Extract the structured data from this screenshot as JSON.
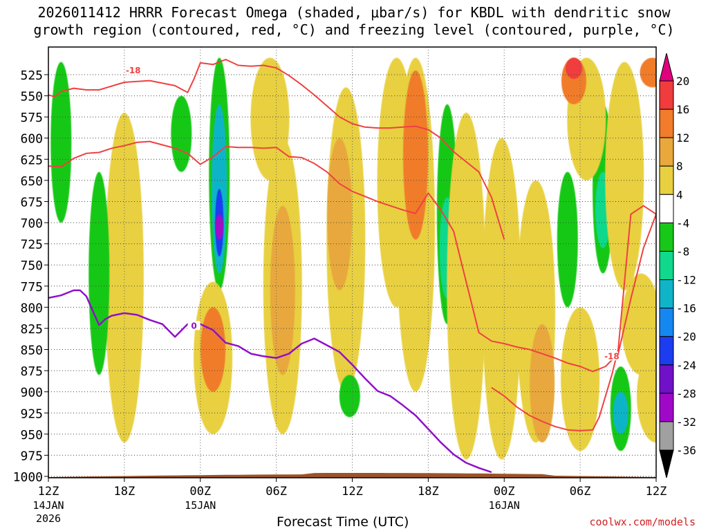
{
  "title": {
    "line1": "2026011412 HRRR Forecast Omega (shaded, μbar/s) for KBDL with dendritic snow",
    "line2": "growth region (contoured, red, °C) and freezing level (contoured, purple, °C)"
  },
  "credit": "coolwx.com/models",
  "chart_data": {
    "type": "heatmap",
    "title": "2026011412 HRRR Forecast Omega (shaded, μbar/s) for KBDL with dendritic snow growth region (contoured, red, °C) and freezing level (contoured, purple, °C)",
    "xlabel": "Forecast Time (UTC)",
    "ylabel": "Pressure (hPa)",
    "x_range_hours": [
      0,
      48
    ],
    "y_range_hpa": [
      505,
      1000
    ],
    "y_ticks": [
      525,
      550,
      575,
      600,
      625,
      650,
      675,
      700,
      725,
      750,
      775,
      800,
      825,
      850,
      875,
      900,
      925,
      950,
      975,
      1000
    ],
    "x_ticks": [
      {
        "hour": 0,
        "label": "12Z",
        "sub1": "14JAN",
        "sub2": "2026"
      },
      {
        "hour": 6,
        "label": "18Z",
        "sub1": "",
        "sub2": ""
      },
      {
        "hour": 12,
        "label": "00Z",
        "sub1": "15JAN",
        "sub2": ""
      },
      {
        "hour": 18,
        "label": "06Z",
        "sub1": "",
        "sub2": ""
      },
      {
        "hour": 24,
        "label": "12Z",
        "sub1": "",
        "sub2": ""
      },
      {
        "hour": 30,
        "label": "18Z",
        "sub1": "",
        "sub2": ""
      },
      {
        "hour": 36,
        "label": "00Z",
        "sub1": "16JAN",
        "sub2": ""
      },
      {
        "hour": 42,
        "label": "06Z",
        "sub1": "",
        "sub2": ""
      },
      {
        "hour": 48,
        "label": "12Z",
        "sub1": "",
        "sub2": ""
      }
    ],
    "colorbar": {
      "levels": [
        -36,
        -32,
        -28,
        -24,
        -20,
        -16,
        -12,
        -8,
        -4,
        4,
        8,
        12,
        16,
        20
      ],
      "labels": [
        "20",
        "16",
        "12",
        "8",
        "4",
        "-4",
        "-8",
        "-12",
        "-16",
        "-20",
        "-24",
        "-28",
        "-32",
        "-36"
      ],
      "colors_top_to_bottom": [
        "#e0007e",
        "#f03c3c",
        "#f07c2c",
        "#e8a83c",
        "#e8d040",
        "#ffffff",
        "#18c818",
        "#10d88c",
        "#10b4c8",
        "#1488f0",
        "#1c3cf0",
        "#7010c8",
        "#a008c8",
        "#a0a0a0",
        "#000000"
      ]
    },
    "omega_cells": [
      {
        "hour": 6,
        "p_top": 690,
        "p_bot": 870,
        "value": 18
      },
      {
        "hour": 6,
        "p_top": 620,
        "p_bot": 900,
        "value": 12
      },
      {
        "hour": 6,
        "p_top": 570,
        "p_bot": 960,
        "value": 6
      },
      {
        "hour": 1,
        "p_top": 510,
        "p_bot": 700,
        "value": -6
      },
      {
        "hour": 4,
        "p_top": 640,
        "p_bot": 880,
        "value": -6
      },
      {
        "hour": 10.5,
        "p_top": 550,
        "p_bot": 640,
        "value": -6
      },
      {
        "hour": 13.5,
        "p_top": 505,
        "p_bot": 780,
        "value": -6
      },
      {
        "hour": 13.5,
        "p_top": 560,
        "p_bot": 760,
        "value": -14
      },
      {
        "hour": 13.5,
        "p_top": 660,
        "p_bot": 740,
        "value": -24
      },
      {
        "hour": 13.5,
        "p_top": 690,
        "p_bot": 720,
        "value": -29
      },
      {
        "hour": 13,
        "p_top": 770,
        "p_bot": 950,
        "value": 6
      },
      {
        "hour": 13,
        "p_top": 800,
        "p_bot": 900,
        "value": 12
      },
      {
        "hour": 18.5,
        "p_top": 600,
        "p_bot": 950,
        "value": 6
      },
      {
        "hour": 18.5,
        "p_top": 680,
        "p_bot": 880,
        "value": 10
      },
      {
        "hour": 17.5,
        "p_top": 505,
        "p_bot": 650,
        "value": 6
      },
      {
        "hour": 23.5,
        "p_top": 540,
        "p_bot": 900,
        "value": 6
      },
      {
        "hour": 23,
        "p_top": 600,
        "p_bot": 780,
        "value": 10
      },
      {
        "hour": 27.5,
        "p_top": 505,
        "p_bot": 800,
        "value": 6
      },
      {
        "hour": 29,
        "p_top": 505,
        "p_bot": 900,
        "value": 6
      },
      {
        "hour": 29,
        "p_top": 520,
        "p_bot": 720,
        "value": 12
      },
      {
        "hour": 23.8,
        "p_top": 880,
        "p_bot": 930,
        "value": -6
      },
      {
        "hour": 31.5,
        "p_top": 560,
        "p_bot": 820,
        "value": -6
      },
      {
        "hour": 31.5,
        "p_top": 670,
        "p_bot": 790,
        "value": -12
      },
      {
        "hour": 33,
        "p_top": 570,
        "p_bot": 980,
        "value": 6
      },
      {
        "hour": 35.2,
        "p_top": 690,
        "p_bot": 930,
        "value": -6
      },
      {
        "hour": 35.8,
        "p_top": 600,
        "p_bot": 980,
        "value": 6
      },
      {
        "hour": 38.5,
        "p_top": 650,
        "p_bot": 960,
        "value": 6
      },
      {
        "hour": 39,
        "p_top": 820,
        "p_bot": 960,
        "value": 10
      },
      {
        "hour": 42,
        "p_top": 800,
        "p_bot": 970,
        "value": 6
      },
      {
        "hour": 41,
        "p_top": 640,
        "p_bot": 800,
        "value": -6
      },
      {
        "hour": 43.8,
        "p_top": 560,
        "p_bot": 760,
        "value": -6
      },
      {
        "hour": 43.8,
        "p_top": 640,
        "p_bot": 730,
        "value": -12
      },
      {
        "hour": 42.5,
        "p_top": 505,
        "p_bot": 650,
        "value": 6
      },
      {
        "hour": 41.5,
        "p_top": 505,
        "p_bot": 560,
        "value": 12
      },
      {
        "hour": 41.5,
        "p_top": 505,
        "p_bot": 530,
        "value": 17
      },
      {
        "hour": 45.5,
        "p_top": 510,
        "p_bot": 780,
        "value": 6
      },
      {
        "hour": 46.8,
        "p_top": 760,
        "p_bot": 880,
        "value": 6
      },
      {
        "hour": 45.2,
        "p_top": 870,
        "p_bot": 970,
        "value": -6
      },
      {
        "hour": 45.2,
        "p_top": 900,
        "p_bot": 950,
        "value": -14
      },
      {
        "hour": 47.7,
        "p_top": 505,
        "p_bot": 540,
        "value": 14
      },
      {
        "hour": 48,
        "p_top": 850,
        "p_bot": 960,
        "value": 6
      }
    ],
    "dgz_upper_contour": {
      "label": "-18",
      "hours": [
        0,
        0.5,
        1,
        2,
        3,
        4,
        6,
        8,
        10,
        11,
        11.5,
        12,
        13,
        14,
        15,
        16,
        17,
        18,
        19,
        20,
        21,
        22,
        23,
        24,
        25,
        26,
        27,
        28,
        29,
        30,
        31,
        32,
        33,
        34,
        35,
        36
      ],
      "pressure": [
        549,
        551,
        545,
        541,
        543,
        543,
        534,
        532,
        538,
        546,
        530,
        511,
        513,
        507,
        514,
        515,
        514,
        517,
        526,
        537,
        549,
        562,
        575,
        583,
        587,
        588,
        588,
        587,
        586,
        590,
        600,
        616,
        628,
        640,
        670,
        720
      ]
    },
    "dgz_lower_contour": {
      "label": "-18",
      "hours": [
        0,
        1,
        2,
        3,
        4,
        5,
        6,
        7,
        8,
        9,
        10,
        11,
        12,
        13,
        14,
        15,
        16,
        17,
        18,
        19,
        20,
        21,
        22,
        23,
        24,
        25,
        26,
        27,
        28,
        29,
        30,
        31,
        32,
        33,
        34,
        35,
        36,
        37,
        38,
        39,
        40,
        41,
        42,
        43,
        44,
        45,
        46,
        47,
        48
      ],
      "pressure": [
        633,
        634,
        624,
        618,
        617,
        612,
        609,
        605,
        604,
        608,
        612,
        618,
        631,
        622,
        610,
        611,
        611,
        612,
        611,
        622,
        623,
        630,
        640,
        654,
        663,
        669,
        675,
        680,
        685,
        689,
        665,
        685,
        710,
        770,
        830,
        840,
        843,
        847,
        850,
        855,
        860,
        866,
        870,
        876,
        870,
        855,
        790,
        730,
        690
      ]
    },
    "dgz_right_contour": {
      "hours": [
        35,
        36,
        37,
        38,
        39,
        40,
        41,
        42,
        43,
        43.5,
        44,
        44.5,
        45,
        46,
        47,
        48
      ],
      "pressure": [
        895,
        905,
        918,
        928,
        935,
        941,
        945,
        946,
        945,
        930,
        905,
        880,
        850,
        690,
        680,
        690
      ]
    },
    "freezing_level_contour": {
      "label": "0",
      "hours": [
        0,
        1,
        2,
        2.5,
        3,
        4,
        4.5,
        5,
        6,
        7,
        8,
        9,
        10,
        11,
        12,
        13,
        14,
        15,
        16,
        17,
        18,
        19,
        20,
        21,
        22,
        23,
        24,
        25,
        26,
        27,
        28,
        29,
        30,
        31,
        32,
        33,
        34,
        35
      ],
      "pressure": [
        789,
        786,
        780,
        780,
        787,
        821,
        814,
        810,
        807,
        809,
        815,
        820,
        835,
        820,
        820,
        827,
        842,
        846,
        855,
        858,
        860,
        855,
        843,
        837,
        845,
        853,
        868,
        884,
        899,
        905,
        916,
        928,
        944,
        960,
        974,
        984,
        990,
        995
      ]
    },
    "terrain_surface_hpa": 1000
  }
}
